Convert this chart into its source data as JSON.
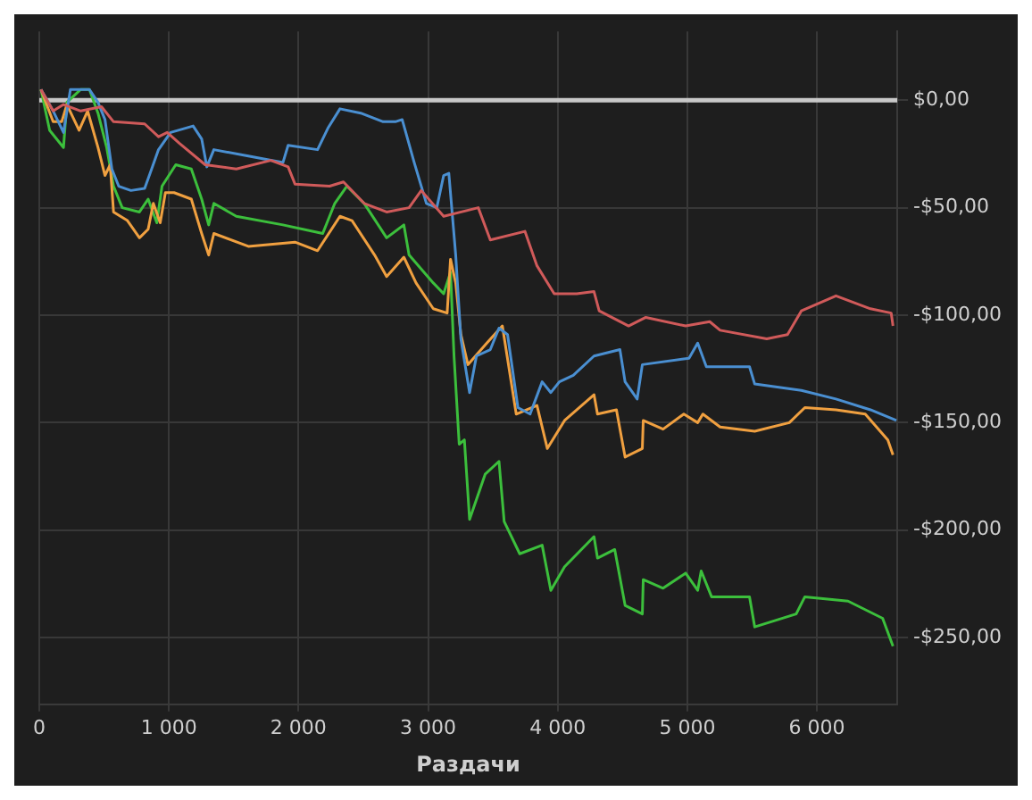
{
  "chart_data": {
    "type": "line",
    "xlabel": "Раздачи",
    "xlim": [
      0,
      6620
    ],
    "ylim": [
      -281,
      32
    ],
    "xticks": [
      0,
      {
        "value": 1000,
        "label": "1 000"
      },
      {
        "value": 2000,
        "label": "2 000"
      },
      {
        "value": 3000,
        "label": "3 000"
      },
      {
        "value": 4000,
        "label": "4 000"
      },
      {
        "value": 5000,
        "label": "5 000"
      },
      {
        "value": 6000,
        "label": "6 000"
      }
    ],
    "yticks": [
      {
        "value": 0,
        "label": "$0,00"
      },
      {
        "value": -50,
        "label": "-$50,00"
      },
      {
        "value": -100,
        "label": "-$100,00"
      },
      {
        "value": -150,
        "label": "-$150,00"
      },
      {
        "value": -200,
        "label": "-$200,00"
      },
      {
        "value": -250,
        "label": "-$250,00"
      }
    ],
    "grid": true,
    "legend": false,
    "marker": "none",
    "line_style": "solid",
    "ref_lines": [
      {
        "axis": "y",
        "value": 0,
        "color": "#c8c8c8"
      }
    ],
    "series": [
      {
        "color": "#d05a5a",
        "x": [
          13,
          107,
          187,
          320,
          480,
          573,
          813,
          920,
          987,
          1080,
          1280,
          1520,
          1787,
          1920,
          1973,
          2240,
          2347,
          2507,
          2680,
          2853,
          2947,
          3120,
          3387,
          3480,
          3747,
          3840,
          3973,
          4147,
          4280,
          4320,
          4547,
          4680,
          4987,
          5173,
          5253,
          5613,
          5773,
          5880,
          6147,
          6413,
          6573,
          6587
        ],
        "values": [
          5,
          -5,
          -2,
          -5,
          -3,
          -10,
          -11,
          -17,
          -15,
          -20,
          -30,
          -32,
          -28,
          -31,
          -39,
          -40,
          -38,
          -48,
          -52,
          -50,
          -42,
          -54,
          -50,
          -65,
          -61,
          -77,
          -90,
          -90,
          -89,
          -98,
          -105,
          -101,
          -105,
          -103,
          -107,
          -111,
          -109,
          -98,
          -91,
          -97,
          -99,
          -105
        ]
      },
      {
        "color": "#4a8fd1",
        "x": [
          13,
          107,
          187,
          240,
          387,
          453,
          507,
          560,
          613,
          707,
          813,
          867,
          920,
          1013,
          1187,
          1253,
          1293,
          1347,
          1613,
          1880,
          1920,
          2147,
          2227,
          2320,
          2480,
          2653,
          2747,
          2800,
          2893,
          2987,
          3067,
          3120,
          3160,
          3213,
          3253,
          3320,
          3373,
          3480,
          3547,
          3613,
          3693,
          3787,
          3880,
          3947,
          4013,
          4120,
          4280,
          4480,
          4520,
          4613,
          4653,
          5013,
          5080,
          5147,
          5480,
          5520,
          5880,
          6147,
          6413,
          6613
        ],
        "values": [
          5,
          -5,
          -15,
          5,
          5,
          -1,
          -9,
          -32,
          -40,
          -42,
          -41,
          -32,
          -23,
          -15,
          -12,
          -18,
          -31,
          -23,
          -26,
          -29,
          -21,
          -23,
          -13,
          -4,
          -6,
          -10,
          -10,
          -9,
          -29,
          -48,
          -50,
          -35,
          -34,
          -72,
          -111,
          -136,
          -119,
          -116,
          -106,
          -109,
          -143,
          -146,
          -131,
          -136,
          -131,
          -128,
          -119,
          -116,
          -131,
          -139,
          -123,
          -120,
          -113,
          -124,
          -124,
          -132,
          -135,
          -139,
          -144,
          -149
        ]
      },
      {
        "color": "#f0a040",
        "x": [
          13,
          107,
          173,
          213,
          307,
          373,
          453,
          507,
          547,
          573,
          680,
          773,
          840,
          880,
          933,
          973,
          1040,
          1173,
          1253,
          1307,
          1347,
          1613,
          1973,
          2147,
          2320,
          2413,
          2587,
          2680,
          2813,
          2907,
          3040,
          3147,
          3173,
          3213,
          3253,
          3307,
          3453,
          3573,
          3680,
          3840,
          3920,
          4053,
          4280,
          4307,
          4453,
          4520,
          4653,
          4660,
          4813,
          4973,
          5080,
          5120,
          5253,
          5520,
          5787,
          5907,
          6147,
          6373,
          6547,
          6587
        ],
        "values": [
          5,
          -10,
          -10,
          -2,
          -14,
          -5,
          -22,
          -35,
          -30,
          -52,
          -56,
          -64,
          -60,
          -48,
          -57,
          -43,
          -43,
          -46,
          -62,
          -72,
          -62,
          -68,
          -66,
          -70,
          -54,
          -56,
          -72,
          -82,
          -73,
          -85,
          -97,
          -99,
          -74,
          -85,
          -109,
          -123,
          -113,
          -105,
          -146,
          -142,
          -162,
          -149,
          -137,
          -146,
          -144,
          -166,
          -162,
          -149,
          -153,
          -146,
          -150,
          -146,
          -152,
          -154,
          -150,
          -143,
          -144,
          -146,
          -158,
          -165
        ]
      },
      {
        "color": "#3cbf3c",
        "x": [
          13,
          80,
          187,
          213,
          320,
          387,
          453,
          520,
          573,
          640,
          773,
          840,
          907,
          947,
          1053,
          1173,
          1253,
          1307,
          1347,
          1520,
          1880,
          2187,
          2280,
          2373,
          2507,
          2680,
          2813,
          2853,
          3040,
          3120,
          3173,
          3200,
          3240,
          3280,
          3320,
          3440,
          3547,
          3587,
          3707,
          3880,
          3947,
          4053,
          4280,
          4307,
          4440,
          4520,
          4653,
          4660,
          4813,
          4987,
          5080,
          5107,
          5187,
          5480,
          5520,
          5840,
          5907,
          6240,
          6507,
          6587
        ],
        "values": [
          5,
          -14,
          -22,
          -1,
          5,
          5,
          -6,
          -22,
          -40,
          -50,
          -52,
          -46,
          -57,
          -40,
          -30,
          -32,
          -46,
          -58,
          -48,
          -54,
          -58,
          -62,
          -48,
          -40,
          -48,
          -64,
          -58,
          -72,
          -85,
          -90,
          -80,
          -119,
          -160,
          -158,
          -195,
          -174,
          -168,
          -196,
          -211,
          -207,
          -228,
          -217,
          -203,
          -213,
          -209,
          -235,
          -239,
          -223,
          -227,
          -220,
          -228,
          -219,
          -231,
          -231,
          -245,
          -239,
          -231,
          -233,
          -241,
          -254
        ]
      }
    ]
  }
}
